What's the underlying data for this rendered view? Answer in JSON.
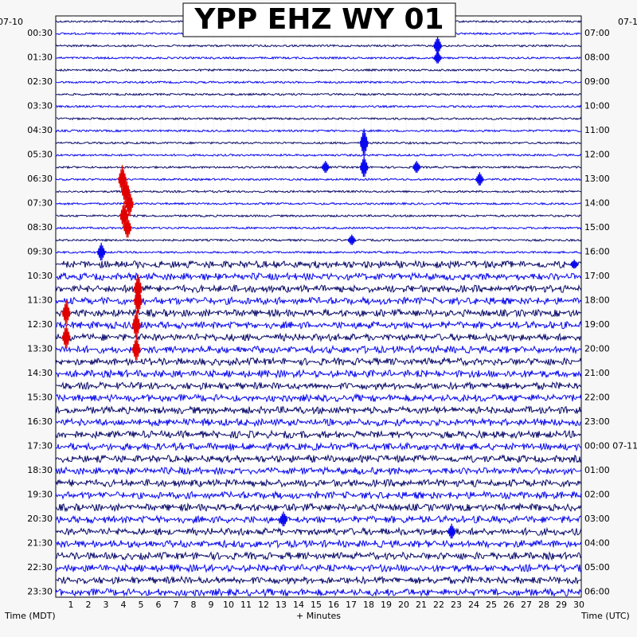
{
  "chart_data": {
    "type": "line",
    "title": "YPP EHZ WY 01",
    "xlabel": "+ Minutes",
    "left_axis_label": "Time (MDT)",
    "right_axis_label": "Time (UTC)",
    "left_date": "07-10",
    "right_date_start": "07-1",
    "right_date_change": "07-11",
    "xlim": [
      0,
      30
    ],
    "x_ticks": [
      "1",
      "2",
      "3",
      "4",
      "5",
      "6",
      "7",
      "8",
      "9",
      "10",
      "11",
      "12",
      "13",
      "14",
      "15",
      "16",
      "17",
      "18",
      "19",
      "20",
      "21",
      "22",
      "23",
      "24",
      "25",
      "26",
      "27",
      "28",
      "29",
      "30"
    ],
    "left_times": [
      "00:30",
      "01:30",
      "02:30",
      "03:30",
      "04:30",
      "05:30",
      "06:30",
      "07:30",
      "08:30",
      "09:30",
      "10:30",
      "11:30",
      "12:30",
      "13:30",
      "14:30",
      "15:30",
      "16:30",
      "17:30",
      "18:30",
      "19:30",
      "20:30",
      "21:30",
      "22:30",
      "23:30"
    ],
    "right_times": [
      "07:00",
      "08:00",
      "09:00",
      "10:00",
      "11:00",
      "12:00",
      "13:00",
      "14:00",
      "15:00",
      "16:00",
      "17:00",
      "18:00",
      "19:00",
      "20:00",
      "21:00",
      "22:00",
      "23:00",
      "00:00",
      "01:00",
      "02:00",
      "03:00",
      "04:00",
      "05:00",
      "06:00"
    ],
    "trace_count": 48,
    "trace_colors": [
      "#0b0b6b",
      "#0a0aee"
    ],
    "event_color": "#e00000",
    "quiet_trace_amplitude": 1.2,
    "noisy_trace_amplitude": 4.5,
    "noisy_from_trace": 20,
    "events": [
      {
        "trace": 2,
        "minute": 21.8,
        "amplitude": 12,
        "color": "blue"
      },
      {
        "trace": 3,
        "minute": 21.8,
        "amplitude": 8,
        "color": "blue"
      },
      {
        "trace": 10,
        "minute": 17.6,
        "amplitude": 18,
        "color": "blue"
      },
      {
        "trace": 12,
        "minute": 17.6,
        "amplitude": 14,
        "color": "blue"
      },
      {
        "trace": 12,
        "minute": 15.4,
        "amplitude": 8,
        "color": "blue"
      },
      {
        "trace": 12,
        "minute": 20.6,
        "amplitude": 8,
        "color": "blue"
      },
      {
        "trace": 13,
        "minute": 24.2,
        "amplitude": 9,
        "color": "blue"
      },
      {
        "trace": 13,
        "minute": 3.8,
        "amplitude": 18,
        "color": "red"
      },
      {
        "trace": 14,
        "minute": 4.0,
        "amplitude": 18,
        "color": "red"
      },
      {
        "trace": 15,
        "minute": 4.2,
        "amplitude": 18,
        "color": "red"
      },
      {
        "trace": 16,
        "minute": 3.9,
        "amplitude": 18,
        "color": "red"
      },
      {
        "trace": 17,
        "minute": 4.1,
        "amplitude": 14,
        "color": "red"
      },
      {
        "trace": 18,
        "minute": 16.9,
        "amplitude": 7,
        "color": "blue"
      },
      {
        "trace": 19,
        "minute": 2.6,
        "amplitude": 12,
        "color": "blue"
      },
      {
        "trace": 20,
        "minute": 29.6,
        "amplitude": 6,
        "color": "blue"
      },
      {
        "trace": 22,
        "minute": 4.7,
        "amplitude": 18,
        "color": "red"
      },
      {
        "trace": 23,
        "minute": 4.7,
        "amplitude": 18,
        "color": "red"
      },
      {
        "trace": 24,
        "minute": 0.6,
        "amplitude": 16,
        "color": "red"
      },
      {
        "trace": 25,
        "minute": 4.6,
        "amplitude": 18,
        "color": "red"
      },
      {
        "trace": 26,
        "minute": 0.6,
        "amplitude": 16,
        "color": "red"
      },
      {
        "trace": 27,
        "minute": 4.6,
        "amplitude": 16,
        "color": "red"
      },
      {
        "trace": 41,
        "minute": 13.0,
        "amplitude": 10,
        "color": "blue"
      },
      {
        "trace": 42,
        "minute": 22.6,
        "amplitude": 10,
        "color": "blue"
      }
    ],
    "grid": true
  }
}
